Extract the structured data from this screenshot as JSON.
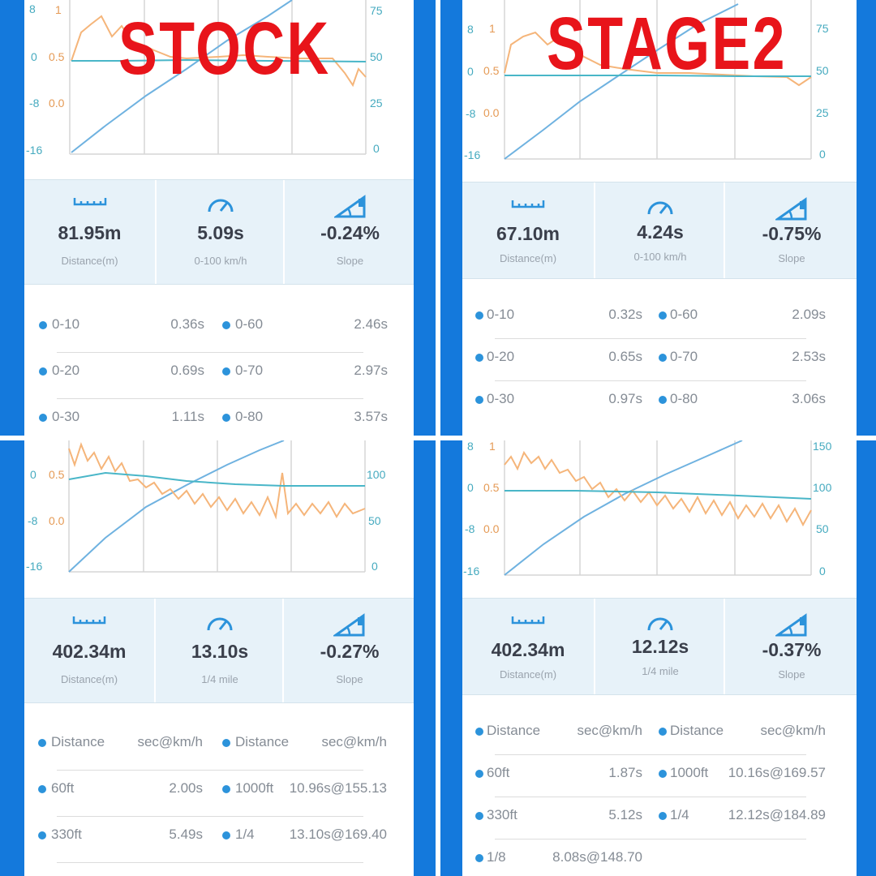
{
  "labels": {
    "left": "STOCK",
    "right": "STAGE2"
  },
  "colors": {
    "frame": "#1479dc",
    "accent_blue": "#2c93db",
    "speed_line": "#6fb2e0",
    "orange_trace": "#f5b57a",
    "teal_trace": "#49b6c8",
    "title_red": "#e8141a"
  },
  "panels": [
    {
      "id": "stock-top",
      "axis_left_inner": [
        "8",
        "0",
        "-8",
        "-16"
      ],
      "axis_left_outer": [
        "1",
        "0.5",
        "0.0"
      ],
      "axis_right": [
        "75",
        "50",
        "25",
        "0"
      ],
      "stats": [
        {
          "icon": "ruler-icon",
          "value": "81.95m",
          "label": "Distance(m)"
        },
        {
          "icon": "speedometer-icon",
          "value": "5.09s",
          "label": "0-100 km/h"
        },
        {
          "icon": "slope-icon",
          "value": "-0.24%",
          "label": "Slope"
        }
      ],
      "rows": [
        {
          "a_label": "0-10",
          "a_value": "0.36s",
          "b_label": "0-60",
          "b_value": "2.46s"
        },
        {
          "a_label": "0-20",
          "a_value": "0.69s",
          "b_label": "0-70",
          "b_value": "2.97s"
        },
        {
          "a_label": "0-30",
          "a_value": "1.11s",
          "b_label": "0-80",
          "b_value": "3.57s"
        }
      ]
    },
    {
      "id": "stage2-top",
      "axis_left_inner": [
        "8",
        "0",
        "-8",
        "-16"
      ],
      "axis_left_outer": [
        "1",
        "0.5",
        "0.0"
      ],
      "axis_right": [
        "75",
        "50",
        "25",
        "0"
      ],
      "stats": [
        {
          "icon": "ruler-icon",
          "value": "67.10m",
          "label": "Distance(m)"
        },
        {
          "icon": "speedometer-icon",
          "value": "4.24s",
          "label": "0-100 km/h"
        },
        {
          "icon": "slope-icon",
          "value": "-0.75%",
          "label": "Slope"
        }
      ],
      "rows": [
        {
          "a_label": "0-10",
          "a_value": "0.32s",
          "b_label": "0-60",
          "b_value": "2.09s"
        },
        {
          "a_label": "0-20",
          "a_value": "0.65s",
          "b_label": "0-70",
          "b_value": "2.53s"
        },
        {
          "a_label": "0-30",
          "a_value": "0.97s",
          "b_label": "0-80",
          "b_value": "3.06s"
        }
      ]
    },
    {
      "id": "stock-bottom",
      "axis_left_inner": [
        "0",
        "-8",
        "-16"
      ],
      "axis_left_outer": [
        "0.5",
        "0.0"
      ],
      "axis_right": [
        "100",
        "50",
        "0"
      ],
      "stats": [
        {
          "icon": "ruler-icon",
          "value": "402.34m",
          "label": "Distance(m)"
        },
        {
          "icon": "speedometer-icon",
          "value": "13.10s",
          "label": "1/4 mile"
        },
        {
          "icon": "slope-icon",
          "value": "-0.27%",
          "label": "Slope"
        }
      ],
      "rows": [
        {
          "a_label": "Distance",
          "a_value": "sec@km/h",
          "b_label": "Distance",
          "b_value": "sec@km/h"
        },
        {
          "a_label": "60ft",
          "a_value": "2.00s",
          "b_label": "1000ft",
          "b_value": "10.96s@155.13"
        },
        {
          "a_label": "330ft",
          "a_value": "5.49s",
          "b_label": "1/4",
          "b_value": "13.10s@169.40"
        }
      ]
    },
    {
      "id": "stage2-bottom",
      "axis_left_inner": [
        "8",
        "0",
        "-8",
        "-16"
      ],
      "axis_left_outer": [
        "1",
        "0.5",
        "0.0"
      ],
      "axis_right": [
        "150",
        "100",
        "50",
        "0"
      ],
      "stats": [
        {
          "icon": "ruler-icon",
          "value": "402.34m",
          "label": "Distance(m)"
        },
        {
          "icon": "speedometer-icon",
          "value": "12.12s",
          "label": "1/4 mile"
        },
        {
          "icon": "slope-icon",
          "value": "-0.37%",
          "label": "Slope"
        }
      ],
      "rows": [
        {
          "a_label": "Distance",
          "a_value": "sec@km/h",
          "b_label": "Distance",
          "b_value": "sec@km/h"
        },
        {
          "a_label": "60ft",
          "a_value": "1.87s",
          "b_label": "1000ft",
          "b_value": "10.16s@169.57"
        },
        {
          "a_label": "330ft",
          "a_value": "5.12s",
          "b_label": "1/4",
          "b_value": "12.12s@184.89"
        },
        {
          "a_label": "1/8",
          "a_value": "8.08s@148.70"
        }
      ]
    }
  ]
}
